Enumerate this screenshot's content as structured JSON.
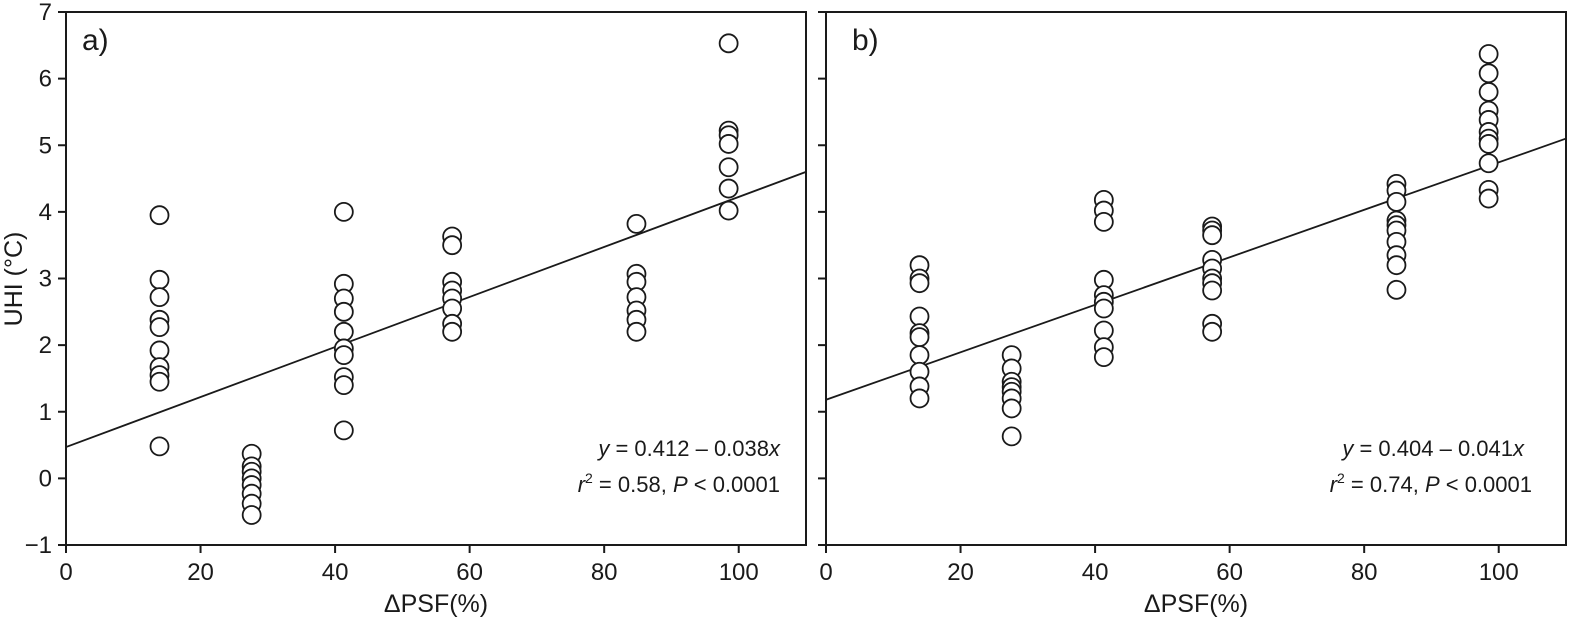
{
  "chart_data": [
    {
      "type": "scatter",
      "panel_label": "a)",
      "xlabel": "ΔPSF(%)",
      "ylabel": "UHI (°C)",
      "xlim": [
        0,
        110
      ],
      "ylim": [
        -1,
        7
      ],
      "xticks": [
        "0",
        "20",
        "40",
        "60",
        "80",
        "100"
      ],
      "yticks": [
        "−1",
        "0",
        "1",
        "2",
        "3",
        "4",
        "5",
        "6",
        "7"
      ],
      "equation_y": "y",
      "equation_rest": " = 0.412 – 0.038",
      "equation_x": "x",
      "stats_r": "r",
      "stats_sup": "2",
      "stats_mid": " = 0.58, ",
      "stats_p": "P",
      "stats_end": " < 0.0001",
      "fit_line": {
        "x": [
          0,
          110
        ],
        "y": [
          0.47,
          4.6
        ]
      },
      "points": [
        {
          "x": 13.9,
          "y": 3.95
        },
        {
          "x": 13.9,
          "y": 2.98
        },
        {
          "x": 13.9,
          "y": 2.72
        },
        {
          "x": 13.9,
          "y": 2.38
        },
        {
          "x": 13.9,
          "y": 2.27
        },
        {
          "x": 13.9,
          "y": 1.92
        },
        {
          "x": 13.9,
          "y": 1.67
        },
        {
          "x": 13.9,
          "y": 1.55
        },
        {
          "x": 13.9,
          "y": 1.45
        },
        {
          "x": 13.9,
          "y": 0.48
        },
        {
          "x": 27.6,
          "y": 0.37
        },
        {
          "x": 27.6,
          "y": 0.18
        },
        {
          "x": 27.6,
          "y": 0.1
        },
        {
          "x": 27.6,
          "y": 0.0
        },
        {
          "x": 27.6,
          "y": -0.1
        },
        {
          "x": 27.6,
          "y": -0.23
        },
        {
          "x": 27.6,
          "y": -0.38
        },
        {
          "x": 27.6,
          "y": -0.55
        },
        {
          "x": 41.3,
          "y": 4.0
        },
        {
          "x": 41.3,
          "y": 2.92
        },
        {
          "x": 41.3,
          "y": 2.7
        },
        {
          "x": 41.3,
          "y": 2.5
        },
        {
          "x": 41.3,
          "y": 2.2
        },
        {
          "x": 41.3,
          "y": 1.95
        },
        {
          "x": 41.3,
          "y": 1.85
        },
        {
          "x": 41.3,
          "y": 1.52
        },
        {
          "x": 41.3,
          "y": 1.4
        },
        {
          "x": 41.3,
          "y": 0.72
        },
        {
          "x": 57.4,
          "y": 3.63
        },
        {
          "x": 57.4,
          "y": 3.5
        },
        {
          "x": 57.4,
          "y": 2.95
        },
        {
          "x": 57.4,
          "y": 2.82
        },
        {
          "x": 57.4,
          "y": 2.7
        },
        {
          "x": 57.4,
          "y": 2.55
        },
        {
          "x": 57.4,
          "y": 2.32
        },
        {
          "x": 57.4,
          "y": 2.2
        },
        {
          "x": 84.8,
          "y": 3.82
        },
        {
          "x": 84.8,
          "y": 3.07
        },
        {
          "x": 84.8,
          "y": 2.95
        },
        {
          "x": 84.8,
          "y": 2.72
        },
        {
          "x": 84.8,
          "y": 2.52
        },
        {
          "x": 84.8,
          "y": 2.38
        },
        {
          "x": 84.8,
          "y": 2.2
        },
        {
          "x": 98.5,
          "y": 6.53
        },
        {
          "x": 98.5,
          "y": 5.22
        },
        {
          "x": 98.5,
          "y": 5.15
        },
        {
          "x": 98.5,
          "y": 5.02
        },
        {
          "x": 98.5,
          "y": 4.67
        },
        {
          "x": 98.5,
          "y": 4.35
        },
        {
          "x": 98.5,
          "y": 4.02
        }
      ]
    },
    {
      "type": "scatter",
      "panel_label": "b)",
      "xlabel": "ΔPSF(%)",
      "ylabel": "",
      "xlim": [
        0,
        110
      ],
      "ylim": [
        -1,
        7
      ],
      "xticks": [
        "0",
        "20",
        "40",
        "60",
        "80",
        "100"
      ],
      "yticks": [],
      "equation_y": "y",
      "equation_rest": " = 0.404 – 0.041",
      "equation_x": "x",
      "stats_r": "r",
      "stats_sup": "2",
      "stats_mid": " = 0.74, ",
      "stats_p": "P",
      "stats_end": " < 0.0001",
      "fit_line": {
        "x": [
          0,
          110
        ],
        "y": [
          1.18,
          5.1
        ]
      },
      "points": [
        {
          "x": 13.9,
          "y": 3.2
        },
        {
          "x": 13.9,
          "y": 3.0
        },
        {
          "x": 13.9,
          "y": 2.93
        },
        {
          "x": 13.9,
          "y": 2.43
        },
        {
          "x": 13.9,
          "y": 2.18
        },
        {
          "x": 13.9,
          "y": 2.12
        },
        {
          "x": 13.9,
          "y": 1.85
        },
        {
          "x": 13.9,
          "y": 1.6
        },
        {
          "x": 13.9,
          "y": 1.38
        },
        {
          "x": 13.9,
          "y": 1.2
        },
        {
          "x": 27.6,
          "y": 1.85
        },
        {
          "x": 27.6,
          "y": 1.65
        },
        {
          "x": 27.6,
          "y": 1.45
        },
        {
          "x": 27.6,
          "y": 1.37
        },
        {
          "x": 27.6,
          "y": 1.3
        },
        {
          "x": 27.6,
          "y": 1.2
        },
        {
          "x": 27.6,
          "y": 1.05
        },
        {
          "x": 27.6,
          "y": 0.63
        },
        {
          "x": 41.3,
          "y": 4.18
        },
        {
          "x": 41.3,
          "y": 4.02
        },
        {
          "x": 41.3,
          "y": 3.85
        },
        {
          "x": 41.3,
          "y": 2.98
        },
        {
          "x": 41.3,
          "y": 2.75
        },
        {
          "x": 41.3,
          "y": 2.65
        },
        {
          "x": 41.3,
          "y": 2.55
        },
        {
          "x": 41.3,
          "y": 2.22
        },
        {
          "x": 41.3,
          "y": 1.97
        },
        {
          "x": 41.3,
          "y": 1.82
        },
        {
          "x": 57.4,
          "y": 3.78
        },
        {
          "x": 57.4,
          "y": 3.72
        },
        {
          "x": 57.4,
          "y": 3.65
        },
        {
          "x": 57.4,
          "y": 3.28
        },
        {
          "x": 57.4,
          "y": 3.15
        },
        {
          "x": 57.4,
          "y": 3.0
        },
        {
          "x": 57.4,
          "y": 2.93
        },
        {
          "x": 57.4,
          "y": 2.82
        },
        {
          "x": 57.4,
          "y": 2.32
        },
        {
          "x": 57.4,
          "y": 2.2
        },
        {
          "x": 84.8,
          "y": 4.42
        },
        {
          "x": 84.8,
          "y": 4.32
        },
        {
          "x": 84.8,
          "y": 4.15
        },
        {
          "x": 84.8,
          "y": 3.87
        },
        {
          "x": 84.8,
          "y": 3.8
        },
        {
          "x": 84.8,
          "y": 3.72
        },
        {
          "x": 84.8,
          "y": 3.55
        },
        {
          "x": 84.8,
          "y": 3.35
        },
        {
          "x": 84.8,
          "y": 3.2
        },
        {
          "x": 84.8,
          "y": 2.83
        },
        {
          "x": 98.5,
          "y": 6.37
        },
        {
          "x": 98.5,
          "y": 6.08
        },
        {
          "x": 98.5,
          "y": 5.8
        },
        {
          "x": 98.5,
          "y": 5.52
        },
        {
          "x": 98.5,
          "y": 5.38
        },
        {
          "x": 98.5,
          "y": 5.2
        },
        {
          "x": 98.5,
          "y": 5.1
        },
        {
          "x": 98.5,
          "y": 5.02
        },
        {
          "x": 98.5,
          "y": 4.73
        },
        {
          "x": 98.5,
          "y": 4.33
        },
        {
          "x": 98.5,
          "y": 4.2
        }
      ]
    }
  ]
}
